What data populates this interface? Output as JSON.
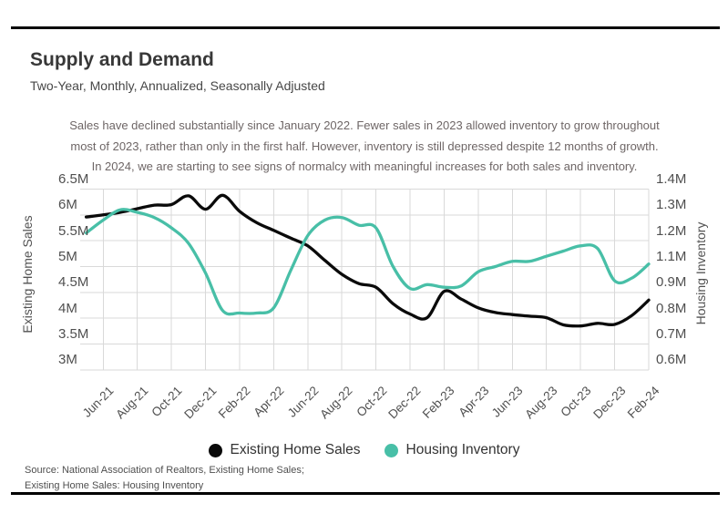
{
  "page": {
    "title": "Supply and Demand",
    "subtitle": "Two-Year, Monthly, Annualized, Seasonally Adjusted",
    "annotation_lines": [
      "Sales have declined substantially since January 2022. Fewer sales in 2023 allowed inventory to grow throughout",
      "most of 2023, rather than only in the first half. However, inventory is still depressed despite 12 months of growth.",
      "In 2024, we are starting to see signs of normalcy with meaningful increases for both sales and inventory."
    ],
    "source_line1": "Source:  National Association of Realtors, Existing Home Sales;",
    "source_line2": "Existing Home Sales: Housing Inventory"
  },
  "colors": {
    "sales_line": "#0a0a0a",
    "inventory_line": "#48bfa7",
    "grid": "#d9d9d9",
    "rule": "#000000"
  },
  "legend": [
    {
      "label": "Existing Home Sales",
      "color": "#0a0a0a"
    },
    {
      "label": "Housing Inventory",
      "color": "#48bfa7"
    }
  ],
  "chart_data": {
    "type": "line",
    "title": "Supply and Demand",
    "subtitle": "Two-Year, Monthly, Annualized, Seasonally Adjusted",
    "x": [
      "May-21",
      "Jun-21",
      "Jul-21",
      "Aug-21",
      "Sep-21",
      "Oct-21",
      "Nov-21",
      "Dec-21",
      "Jan-22",
      "Feb-22",
      "Mar-22",
      "Apr-22",
      "May-22",
      "Jun-22",
      "Jul-22",
      "Aug-22",
      "Sep-22",
      "Oct-22",
      "Nov-22",
      "Dec-22",
      "Jan-23",
      "Feb-23",
      "Mar-23",
      "Apr-23",
      "May-23",
      "Jun-23",
      "Jul-23",
      "Aug-23",
      "Sep-23",
      "Oct-23",
      "Nov-23",
      "Dec-23",
      "Jan-24",
      "Feb-24"
    ],
    "x_tick_labels": [
      "Jun-21",
      "Aug-21",
      "Oct-21",
      "Dec-21",
      "Feb-22",
      "Apr-22",
      "Jun-22",
      "Aug-22",
      "Oct-22",
      "Dec-22",
      "Feb-23",
      "Apr-23",
      "Jun-23",
      "Aug-23",
      "Oct-23",
      "Dec-23",
      "Feb-24"
    ],
    "series": [
      {
        "name": "Existing Home Sales",
        "axis": "left",
        "color": "#0a0a0a",
        "unit": "M",
        "values": [
          5.96,
          6.0,
          6.05,
          6.12,
          6.19,
          6.2,
          6.37,
          6.11,
          6.38,
          6.07,
          5.85,
          5.7,
          5.55,
          5.4,
          5.12,
          4.85,
          4.67,
          4.6,
          4.28,
          4.08,
          4.01,
          4.52,
          4.37,
          4.2,
          4.11,
          4.07,
          4.04,
          4.01,
          3.87,
          3.85,
          3.9,
          3.88,
          4.05,
          4.35
        ]
      },
      {
        "name": "Housing Inventory",
        "axis": "right",
        "color": "#48bfa7",
        "unit": "M",
        "values": [
          1.23,
          1.28,
          1.32,
          1.31,
          1.29,
          1.25,
          1.19,
          1.05,
          0.83,
          0.82,
          0.82,
          0.84,
          1.07,
          1.22,
          1.28,
          1.29,
          1.26,
          1.25,
          1.1,
          0.93,
          0.96,
          0.94,
          0.95,
          1.06,
          1.1,
          1.12,
          1.12,
          1.14,
          1.16,
          1.18,
          1.17,
          0.99,
          1.01,
          1.11
        ]
      }
    ],
    "y_left": {
      "label": "Existing Home Sales",
      "ticks": [
        "6.5M",
        "6M",
        "5.5M",
        "5M",
        "4.5M",
        "4M",
        "3.5M",
        "3M"
      ],
      "range": [
        3.0,
        6.5
      ]
    },
    "y_right": {
      "label": "Housing Inventory",
      "ticks": [
        "1.4M",
        "1.3M",
        "1.2M",
        "1.1M",
        "0.9M",
        "0.8M",
        "0.7M",
        "0.6M"
      ],
      "range": [
        0.6,
        1.4
      ],
      "note": "axis labels as printed; 1.0M step is skipped"
    },
    "grid": true,
    "legend_position": "bottom"
  }
}
